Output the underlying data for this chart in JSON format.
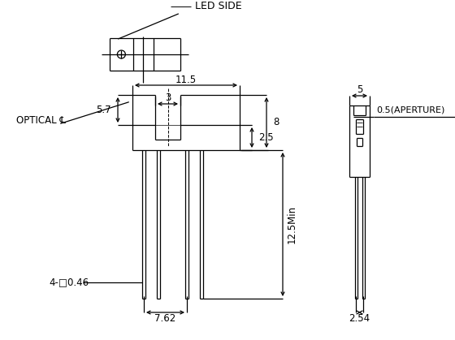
{
  "bg_color": "#ffffff",
  "line_color": "#000000",
  "lw": 0.9,
  "annotations": {
    "led_side": "LED SIDE",
    "optical_cl": "OPTICAL ℄",
    "dim_11_5": "11.5",
    "dim_3": "3",
    "dim_5_7": "5.7",
    "dim_2_5": "2.5",
    "dim_8": "8",
    "dim_12_5": "12.5Min",
    "dim_7_62": "7.62",
    "dim_4_sq": "4-□0.46",
    "dim_5": "5",
    "dim_0_5": "0.5(APERTURE)",
    "dim_2_54": "2.54"
  },
  "fs": 8.5
}
